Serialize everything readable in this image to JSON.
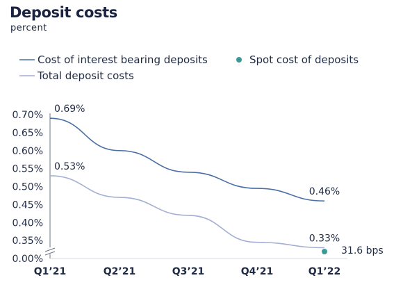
{
  "header": {
    "title": "Deposit costs",
    "subtitle": "percent"
  },
  "chart_data": {
    "type": "line",
    "title": "Deposit costs",
    "subtitle": "percent",
    "categories": [
      "Q1’21",
      "Q2’21",
      "Q3’21",
      "Q4’21",
      "Q1’22"
    ],
    "series": [
      {
        "name": "Cost of interest bearing deposits",
        "color": "#4a6fa5",
        "values": [
          0.69,
          0.6,
          0.54,
          0.495,
          0.46
        ],
        "labels": [
          {
            "index": 0,
            "text": "0.69%"
          },
          {
            "index": 4,
            "text": "0.46%"
          }
        ]
      },
      {
        "name": "Total deposit costs",
        "color": "#a3afd3",
        "values": [
          0.53,
          0.47,
          0.42,
          0.345,
          0.33
        ],
        "labels": [
          {
            "index": 0,
            "text": "0.53%"
          },
          {
            "index": 4,
            "text": "0.33%"
          }
        ]
      }
    ],
    "points": [
      {
        "name": "Spot cost of deposits",
        "color": "#3a9a96",
        "category_index": 4,
        "value": 0.316,
        "label": "31.6 bps"
      }
    ],
    "y_ticks": [
      "0.70%",
      "0.65%",
      "0.60%",
      "0.55%",
      "0.50%",
      "0.45%",
      "0.40%",
      "0.35%",
      "0.00%"
    ],
    "y_tick_values": [
      0.7,
      0.65,
      0.6,
      0.55,
      0.5,
      0.45,
      0.4,
      0.35,
      0.3
    ],
    "y_axis_break": true,
    "ylim": [
      0.3,
      0.7
    ],
    "legend_position": "top-left",
    "grid": false
  }
}
